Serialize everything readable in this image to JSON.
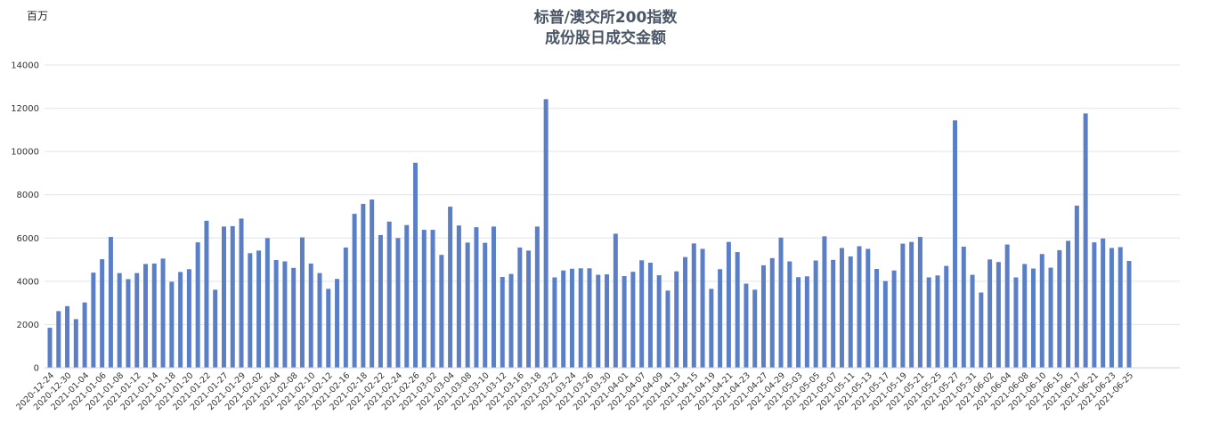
{
  "chart_data": {
    "type": "bar",
    "title_line1": "标普/澳交所200指数",
    "title_line2": "成份股日成交金额",
    "unit_label": "百万",
    "ylim": [
      0,
      14000
    ],
    "yticks": [
      0,
      2000,
      4000,
      6000,
      8000,
      10000,
      12000,
      14000
    ],
    "xtick_labels": [
      "2020-12-24",
      "2020-12-30",
      "2021-01-04",
      "2021-01-06",
      "2021-01-08",
      "2021-01-12",
      "2021-01-14",
      "2021-01-18",
      "2021-01-20",
      "2021-01-22",
      "2021-01-27",
      "2021-01-29",
      "2021-02-02",
      "2021-02-04",
      "2021-02-08",
      "2021-02-10",
      "2021-02-12",
      "2021-02-16",
      "2021-02-18",
      "2021-02-22",
      "2021-02-24",
      "2021-02-26",
      "2021-03-02",
      "2021-03-04",
      "2021-03-08",
      "2021-03-10",
      "2021-03-12",
      "2021-03-16",
      "2021-03-18",
      "2021-03-22",
      "2021-03-24",
      "2021-03-26",
      "2021-03-30",
      "2021-04-01",
      "2021-04-07",
      "2021-04-09",
      "2021-04-13",
      "2021-04-15",
      "2021-04-19",
      "2021-04-21",
      "2021-04-23",
      "2021-04-27",
      "2021-04-29",
      "2021-05-03",
      "2021-05-05",
      "2021-05-07",
      "2021-05-11",
      "2021-05-13",
      "2021-05-17",
      "2021-05-19",
      "2021-05-21",
      "2021-05-25",
      "2021-05-27",
      "2021-05-31",
      "2021-06-02",
      "2021-06-04",
      "2021-06-08",
      "2021-06-10",
      "2021-06-15",
      "2021-06-17",
      "2021-06-21",
      "2021-06-23",
      "2021-06-25"
    ],
    "values": [
      1850,
      2620,
      2850,
      2250,
      3020,
      4400,
      5020,
      6050,
      4380,
      4100,
      4380,
      4800,
      4820,
      5050,
      3980,
      4430,
      4560,
      5800,
      6800,
      3610,
      6530,
      6550,
      6900,
      5300,
      5420,
      6000,
      4980,
      4920,
      4620,
      6030,
      4820,
      4380,
      3650,
      4110,
      5560,
      7120,
      7580,
      7780,
      6140,
      6760,
      6000,
      6600,
      9480,
      6380,
      6380,
      5220,
      7450,
      6580,
      5790,
      6500,
      5780,
      6530,
      4200,
      4340,
      5560,
      5420,
      6530,
      12420,
      4180,
      4500,
      4580,
      4600,
      4600,
      4300,
      4320,
      6200,
      4240,
      4440,
      4970,
      4860,
      4280,
      3570,
      4460,
      5120,
      5750,
      5500,
      3650,
      4560,
      5820,
      5350,
      3890,
      3610,
      4740,
      5070,
      6020,
      4920,
      4190,
      4230,
      4960,
      6080,
      4990,
      5540,
      5150,
      5620,
      5500,
      4570,
      4010,
      4500,
      5740,
      5820,
      6050,
      4180,
      4270,
      4710,
      11440,
      5600,
      4300,
      3480,
      5010,
      4890,
      5700,
      4180,
      4800,
      4590,
      5260,
      4630,
      5440,
      5870,
      7500,
      11760,
      5800,
      5980,
      5540,
      5580,
      4940
    ]
  }
}
